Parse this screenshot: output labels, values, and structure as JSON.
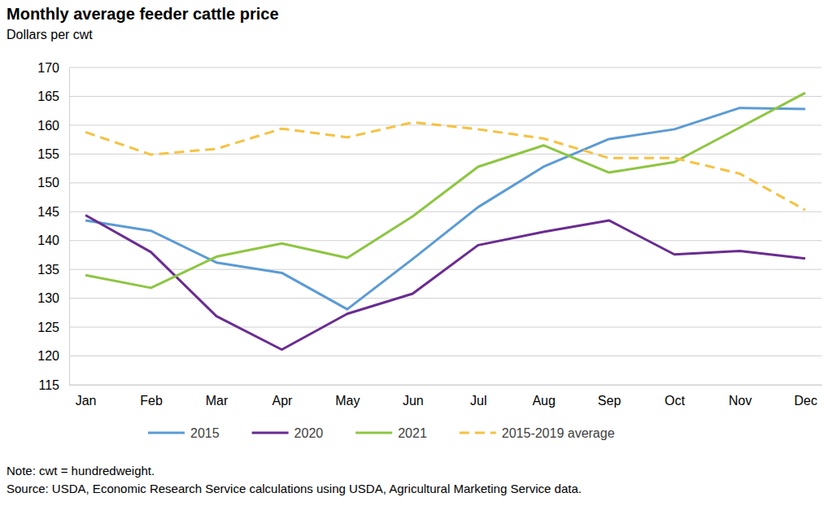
{
  "chart_data": {
    "type": "line",
    "title": "Monthly average feeder cattle price",
    "subtitle": "Dollars per cwt",
    "note": "Note: cwt = hundredweight.",
    "source": "Source: USDA, Economic Research Service calculations using USDA, Agricultural Marketing Service data.",
    "categories": [
      "Jan",
      "Feb",
      "Mar",
      "Apr",
      "May",
      "Jun",
      "Jul",
      "Aug",
      "Sep",
      "Oct",
      "Nov",
      "Dec"
    ],
    "series": [
      {
        "name": "2015",
        "color": "#5b9bd5",
        "line_style": "solid",
        "values": [
          143.5,
          141.7,
          136.2,
          134.4,
          128.1,
          136.8,
          145.8,
          152.8,
          157.6,
          159.3,
          163.0,
          162.8
        ]
      },
      {
        "name": "2020",
        "color": "#6a2c91",
        "line_style": "solid",
        "values": [
          144.4,
          138.0,
          126.9,
          121.1,
          127.3,
          130.8,
          139.2,
          141.5,
          143.5,
          137.6,
          138.2,
          136.9
        ]
      },
      {
        "name": "2021",
        "color": "#8dc641",
        "line_style": "solid",
        "values": [
          134.0,
          131.8,
          137.2,
          139.5,
          137.0,
          144.2,
          152.8,
          156.5,
          151.8,
          153.6,
          159.6,
          165.6
        ]
      },
      {
        "name": "2015-2019 average",
        "color": "#f5c242",
        "line_style": "dashed",
        "values": [
          158.8,
          154.9,
          155.9,
          159.4,
          157.9,
          160.5,
          159.3,
          157.7,
          154.3,
          154.3,
          151.6,
          145.3
        ]
      }
    ],
    "ylim": [
      115,
      170
    ],
    "yticks": [
      115,
      120,
      125,
      130,
      135,
      140,
      145,
      150,
      155,
      160,
      165,
      170
    ],
    "grid": true,
    "legend": "bottom"
  }
}
